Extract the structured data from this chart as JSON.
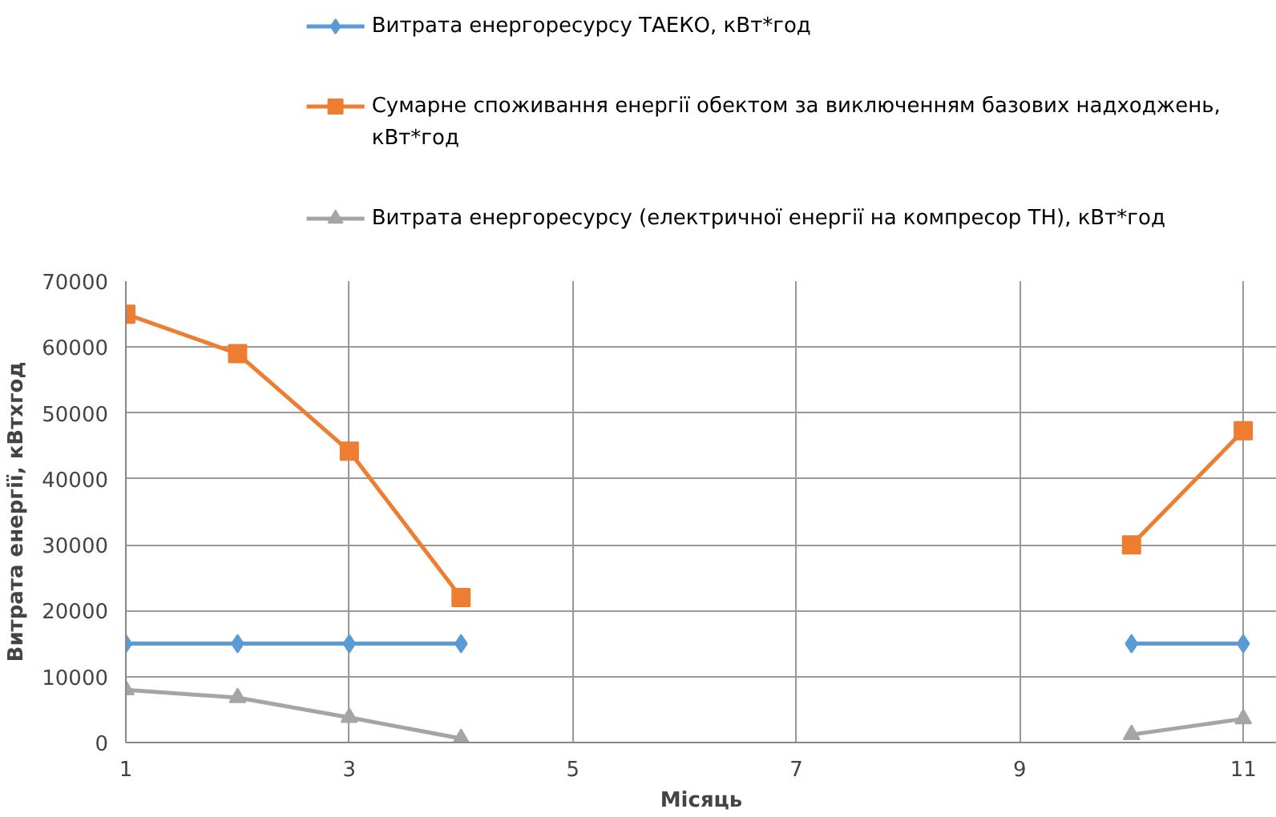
{
  "chart_data": {
    "type": "line",
    "xlabel": "Місяць",
    "ylabel": "Витрата енергії, кВтхгод",
    "x": [
      1,
      2,
      3,
      4,
      5,
      6,
      7,
      8,
      9,
      10,
      11
    ],
    "series": [
      {
        "name": "Витрата енергоресурсу ТАЕКО, кВт*год",
        "color": "#5b9bd5",
        "marker": "diamond",
        "values": [
          15000,
          15000,
          15000,
          15000,
          null,
          null,
          null,
          null,
          null,
          15000,
          15000
        ]
      },
      {
        "name": "Сумарне споживання енергії обектом за виключенням базових надходжень, кВт*год",
        "color": "#ed7d31",
        "marker": "square",
        "values": [
          65000,
          59000,
          44200,
          22000,
          null,
          null,
          null,
          null,
          null,
          30000,
          47300
        ]
      },
      {
        "name": "Витрата енергоресурсу (електричної енергії на компресор ТН), кВт*год",
        "color": "#a5a5a5",
        "marker": "triangle",
        "values": [
          8000,
          6800,
          3800,
          600,
          null,
          null,
          null,
          null,
          null,
          1200,
          3600
        ]
      }
    ],
    "xlim": [
      1,
      11.3
    ],
    "xticks": [
      1,
      3,
      5,
      7,
      9,
      11
    ],
    "ylim": [
      0,
      70000
    ],
    "yticks": [
      0,
      10000,
      20000,
      30000,
      40000,
      50000,
      60000,
      70000
    ],
    "grid": true,
    "legend": "top"
  }
}
